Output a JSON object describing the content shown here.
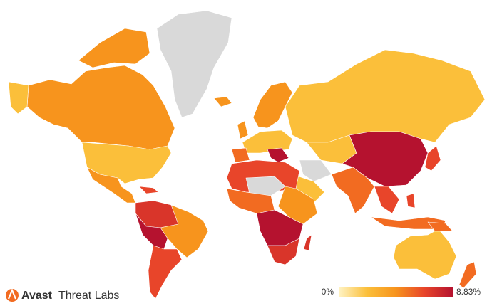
{
  "map": {
    "legend": {
      "min": {
        "value": 0,
        "label": "0%"
      },
      "max": {
        "value": 8.83,
        "label": "8.83%"
      },
      "colors": [
        "#fff3c4",
        "#fbbf3a",
        "#f7941d",
        "#e8452a",
        "#b5122f"
      ]
    }
  },
  "brand": {
    "name": "Avast",
    "product": "Threat Labs"
  }
}
